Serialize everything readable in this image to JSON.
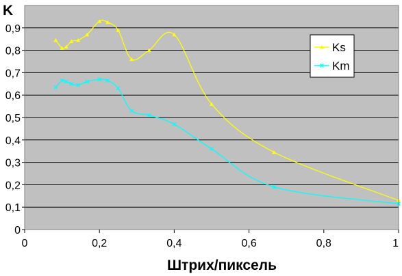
{
  "chart_data": {
    "type": "line",
    "title": "",
    "xlabel": "Штрих/пиксель",
    "ylabel": "K",
    "xlim": [
      0,
      1
    ],
    "ylim": [
      0,
      1
    ],
    "x_ticks": [
      0,
      0.2,
      0.4,
      0.6,
      0.8,
      1
    ],
    "x_tick_labels": [
      "0",
      "0,2",
      "0,4",
      "0,6",
      "0,8",
      "1"
    ],
    "y_ticks": [
      0,
      0.1,
      0.2,
      0.3,
      0.4,
      0.5,
      0.6,
      0.7,
      0.8,
      0.9
    ],
    "y_tick_labels": [
      "0",
      "0,1",
      "0,2",
      "0,3",
      "0,4",
      "0,5",
      "0,6",
      "0,7",
      "0,8",
      "0,9"
    ],
    "grid": "horizontal",
    "plot_background": "#c0c0c0",
    "legend_position": "right",
    "series": [
      {
        "name": "Ks",
        "color": "#ffff00",
        "marker": "triangle",
        "points": [
          [
            0.083,
            0.845
          ],
          [
            0.1,
            0.81
          ],
          [
            0.111,
            0.815
          ],
          [
            0.125,
            0.84
          ],
          [
            0.143,
            0.845
          ],
          [
            0.167,
            0.87
          ],
          [
            0.2,
            0.93
          ],
          [
            0.222,
            0.925
          ],
          [
            0.25,
            0.89
          ],
          [
            0.286,
            0.76
          ],
          [
            0.333,
            0.8
          ],
          [
            0.4,
            0.87
          ],
          [
            0.5,
            0.56
          ],
          [
            0.667,
            0.345
          ],
          [
            1.0,
            0.13
          ]
        ]
      },
      {
        "name": "Km",
        "color": "#00ffff",
        "marker": "x",
        "points": [
          [
            0.083,
            0.635
          ],
          [
            0.1,
            0.665
          ],
          [
            0.111,
            0.66
          ],
          [
            0.125,
            0.65
          ],
          [
            0.143,
            0.645
          ],
          [
            0.167,
            0.66
          ],
          [
            0.2,
            0.67
          ],
          [
            0.222,
            0.665
          ],
          [
            0.25,
            0.63
          ],
          [
            0.286,
            0.53
          ],
          [
            0.333,
            0.51
          ],
          [
            0.4,
            0.47
          ],
          [
            0.5,
            0.36
          ],
          [
            0.667,
            0.19
          ],
          [
            1.0,
            0.115
          ]
        ]
      }
    ]
  }
}
